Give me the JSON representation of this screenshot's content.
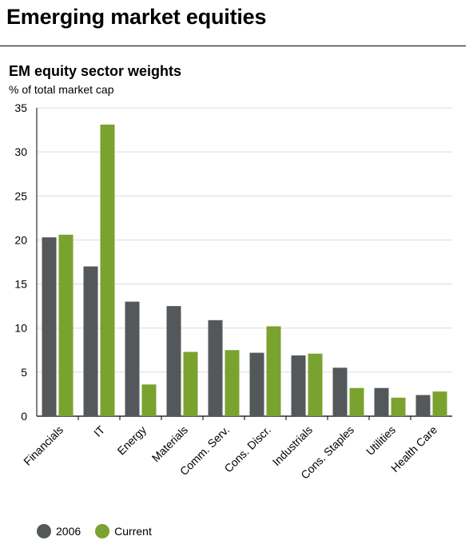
{
  "header": {
    "title": "Emerging market equities"
  },
  "chart_data": {
    "type": "bar",
    "title": "EM equity sector weights",
    "subtitle": "% of total market cap",
    "xlabel": "",
    "ylabel": "% of total market cap",
    "ylim": [
      0,
      35
    ],
    "yticks": [
      0,
      5,
      10,
      15,
      20,
      25,
      30,
      35
    ],
    "grid": true,
    "legend_position": "bottom-left",
    "categories": [
      "Financials",
      "IT",
      "Energy",
      "Materials",
      "Comm. Serv.",
      "Cons. Discr.",
      "Industrials",
      "Cons. Staples",
      "Utilities",
      "Health Care"
    ],
    "series": [
      {
        "name": "2006",
        "color": "#54585a",
        "values": [
          20.3,
          17.0,
          13.0,
          12.5,
          10.9,
          7.2,
          6.9,
          5.5,
          3.2,
          2.4
        ]
      },
      {
        "name": "Current",
        "color": "#7aa22f",
        "values": [
          20.6,
          33.1,
          3.6,
          7.3,
          7.5,
          10.2,
          7.1,
          3.2,
          2.1,
          2.8
        ]
      }
    ]
  }
}
